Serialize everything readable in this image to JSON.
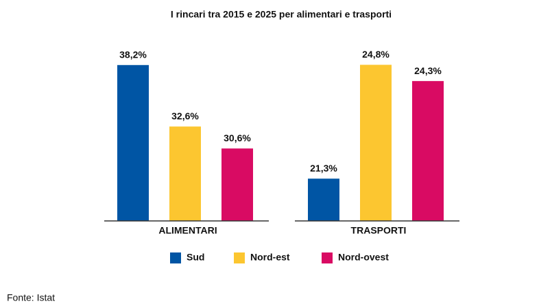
{
  "chart_data": {
    "type": "bar",
    "title": "I rincari tra 2015 e 2025 per alimentari e trasporti",
    "categories": [
      "ALIMENTARI",
      "TRASPORTI"
    ],
    "ylims": [
      [
        24,
        40
      ],
      [
        20,
        25.4
      ]
    ],
    "series": [
      {
        "name": "Sud",
        "color": "#0055a4",
        "values": [
          38.2,
          21.3
        ],
        "value_labels": [
          "38,2%",
          "21,3%"
        ]
      },
      {
        "name": "Nord-est",
        "color": "#fcc630",
        "values": [
          32.6,
          24.8
        ],
        "value_labels": [
          "32,6%",
          "24,8%"
        ]
      },
      {
        "name": "Nord-ovest",
        "color": "#d90b63",
        "values": [
          30.6,
          24.3
        ],
        "value_labels": [
          "30,6%",
          "24,3%"
        ]
      }
    ],
    "source": "Fonte: Istat"
  }
}
